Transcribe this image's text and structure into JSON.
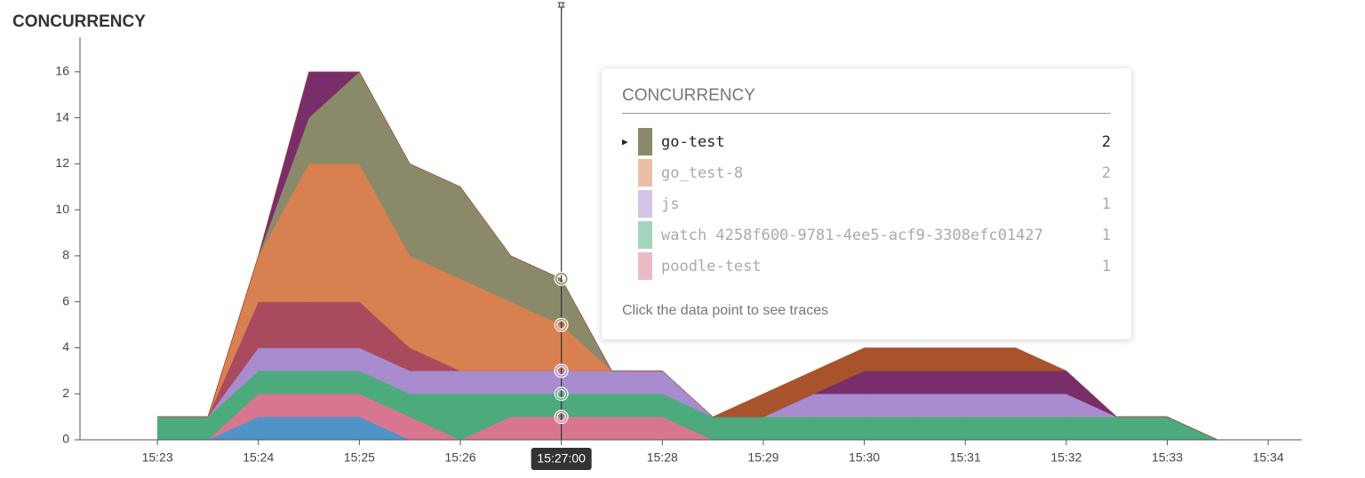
{
  "chart_data": {
    "type": "stacked_area",
    "title": "CONCURRENCY",
    "x": [
      "15:23:00",
      "15:23:30",
      "15:24:00",
      "15:24:30",
      "15:25:00",
      "15:25:30",
      "15:26:00",
      "15:26:30",
      "15:27:00",
      "15:27:30",
      "15:28:00",
      "15:28:30",
      "15:29:00",
      "15:29:30",
      "15:30:00",
      "15:30:30",
      "15:31:00",
      "15:31:30",
      "15:32:00",
      "15:32:30",
      "15:33:00",
      "15:33:30"
    ],
    "series": [
      {
        "color": "#4f93c9",
        "values": [
          0,
          0,
          1,
          1,
          1,
          0,
          0,
          0,
          0,
          0,
          0,
          0,
          0,
          0,
          0,
          0,
          0,
          0,
          0,
          0,
          0,
          0
        ]
      },
      {
        "name": "poodle-test",
        "color": "#d9768f",
        "values": [
          0,
          0,
          1,
          1,
          1,
          1,
          0,
          1,
          1,
          1,
          1,
          0,
          0,
          0,
          0,
          0,
          0,
          0,
          0,
          0,
          0,
          0
        ]
      },
      {
        "name": "watch 4258f600-9781-4ee5-acf9-3308efc01427",
        "color": "#4caa7c",
        "values": [
          1,
          1,
          1,
          1,
          1,
          1,
          2,
          1,
          1,
          1,
          1,
          1,
          1,
          1,
          1,
          1,
          1,
          1,
          1,
          1,
          1,
          0
        ]
      },
      {
        "name": "js",
        "color": "#a98bd0",
        "values": [
          0,
          0,
          1,
          1,
          1,
          1,
          1,
          1,
          1,
          1,
          1,
          0,
          0,
          1,
          1,
          1,
          1,
          1,
          1,
          0,
          0,
          0
        ]
      },
      {
        "color": "#a94a5e",
        "values": [
          0,
          0,
          2,
          2,
          2,
          1,
          0,
          0,
          0,
          0,
          0,
          0,
          0,
          0,
          0,
          0,
          0,
          0,
          0,
          0,
          0,
          0
        ]
      },
      {
        "name": "go_test-8",
        "color": "#d8804f",
        "values": [
          0,
          0,
          2,
          6,
          6,
          4,
          4,
          3,
          2,
          0,
          0,
          0,
          0,
          0,
          0,
          0,
          0,
          0,
          0,
          0,
          0,
          0
        ]
      },
      {
        "name": "go-test",
        "color": "#8a8a6a",
        "values": [
          0,
          0,
          0,
          2,
          4,
          4,
          4,
          2,
          2,
          0,
          0,
          0,
          0,
          0,
          0,
          0,
          0,
          0,
          0,
          0,
          0,
          0
        ]
      },
      {
        "color": "#7a2d6b",
        "values": [
          0,
          0,
          0,
          2,
          0,
          0,
          0,
          0,
          0,
          0,
          0,
          0,
          0,
          0,
          1,
          1,
          1,
          1,
          1,
          0,
          0,
          0
        ]
      },
      {
        "color": "#a9532c",
        "values": [
          0,
          0,
          0,
          0,
          0,
          0,
          0,
          0,
          0,
          0,
          0,
          0,
          1,
          1,
          1,
          1,
          1,
          1,
          0,
          0,
          0,
          0
        ]
      }
    ],
    "xlim": [
      "15:22:14",
      "15:34:20"
    ],
    "xticks": [
      {
        "value": "15:23:00",
        "label": "15:23"
      },
      {
        "value": "15:24:00",
        "label": "15:24"
      },
      {
        "value": "15:25:00",
        "label": "15:25"
      },
      {
        "value": "15:26:00",
        "label": "15:26"
      },
      {
        "value": "15:27:00",
        "label": "15:27"
      },
      {
        "value": "15:28:00",
        "label": "15:28"
      },
      {
        "value": "15:29:00",
        "label": "15:29"
      },
      {
        "value": "15:30:00",
        "label": "15:30"
      },
      {
        "value": "15:31:00",
        "label": "15:31"
      },
      {
        "value": "15:32:00",
        "label": "15:32"
      },
      {
        "value": "15:33:00",
        "label": "15:33"
      },
      {
        "value": "15:34:00",
        "label": "15:34"
      }
    ],
    "ylim": [
      0,
      17.5
    ],
    "yticks": [
      0,
      2,
      4,
      6,
      8,
      10,
      12,
      14,
      16
    ],
    "cursor": "15:27:00",
    "tooltip": {
      "title": "CONCURRENCY",
      "hint": "Click the data point to see traces"
    }
  }
}
